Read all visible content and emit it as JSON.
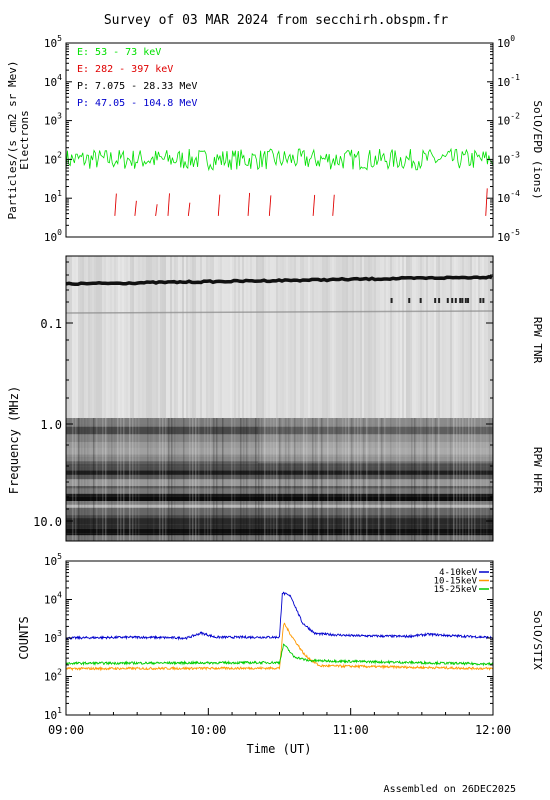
{
  "page_title": "Survey of 03 MAR 2024 from secchirh.obspm.fr",
  "footer": "Assembled on 26DEC2025",
  "chart_data": [
    {
      "type": "line",
      "id": "epd",
      "ylabel": "Particles/(s cm2 sr Mev)",
      "ylabel2": "Electrons",
      "right_label": "SolO/EPD (ions)",
      "yscale": "log",
      "ylim": [
        1,
        100000
      ],
      "y_ticks": [
        "10^0",
        "10^1",
        "10^2",
        "10^3",
        "10^4",
        "10^5"
      ],
      "y2_ticks": [
        "10^-5",
        "10^-4",
        "10^-3",
        "10^-2",
        "10^-1",
        "10^0"
      ],
      "legend_position": "top-left",
      "series": [
        {
          "name": "E: 53 - 73 keV",
          "color": "#00e000",
          "baseline": 100,
          "spread": 0.45
        },
        {
          "name": "E: 282 - 397 keV",
          "color": "#e00000",
          "baseline": 6,
          "sporadic": true
        },
        {
          "name": "P: 7.075 - 28.33 MeV",
          "color": "#000000"
        },
        {
          "name": "P: 47.05 - 104.8 MeV",
          "color": "#0000cc"
        }
      ]
    },
    {
      "type": "heatmap",
      "id": "rpw",
      "ylabel": "Frequency (MHz)",
      "yscale": "log",
      "y_ticks": [
        "0.1",
        "1.0",
        "10.0"
      ],
      "right_labels": [
        "RPW TNR",
        "RPW HFR"
      ],
      "colormap": "grayscale"
    },
    {
      "type": "line",
      "id": "stix",
      "ylabel": "COUNTS",
      "right_label": "SolO/STIX",
      "yscale": "log",
      "ylim": [
        10,
        100000
      ],
      "y_ticks": [
        "10^1",
        "10^2",
        "10^3",
        "10^4",
        "10^5"
      ],
      "xlabel": "Time (UT)",
      "x_ticks": [
        "09:00",
        "10:00",
        "11:00",
        "12:00"
      ],
      "xlim_hours": [
        9,
        12
      ],
      "legend_position": "top-right",
      "series": [
        {
          "name": "4-10keV",
          "color": "#0000cc",
          "points": [
            [
              9.0,
              1000
            ],
            [
              9.5,
              1050
            ],
            [
              9.85,
              1000
            ],
            [
              9.95,
              1350
            ],
            [
              10.05,
              1050
            ],
            [
              10.5,
              1050
            ],
            [
              10.52,
              15000
            ],
            [
              10.58,
              12000
            ],
            [
              10.66,
              2500
            ],
            [
              10.75,
              1300
            ],
            [
              11.0,
              1150
            ],
            [
              11.4,
              1100
            ],
            [
              11.55,
              1250
            ],
            [
              11.7,
              1150
            ],
            [
              11.95,
              1050
            ],
            [
              12.0,
              1000
            ]
          ]
        },
        {
          "name": "10-15keV",
          "color": "#ff9900",
          "points": [
            [
              9.0,
              160
            ],
            [
              10.5,
              165
            ],
            [
              10.53,
              2500
            ],
            [
              10.58,
              1200
            ],
            [
              10.68,
              350
            ],
            [
              10.78,
              190
            ],
            [
              12.0,
              160
            ]
          ]
        },
        {
          "name": "15-25keV",
          "color": "#00cc00",
          "points": [
            [
              9.0,
              220
            ],
            [
              10.5,
              230
            ],
            [
              10.53,
              700
            ],
            [
              10.6,
              330
            ],
            [
              10.7,
              260
            ],
            [
              12.0,
              210
            ]
          ]
        }
      ]
    }
  ]
}
